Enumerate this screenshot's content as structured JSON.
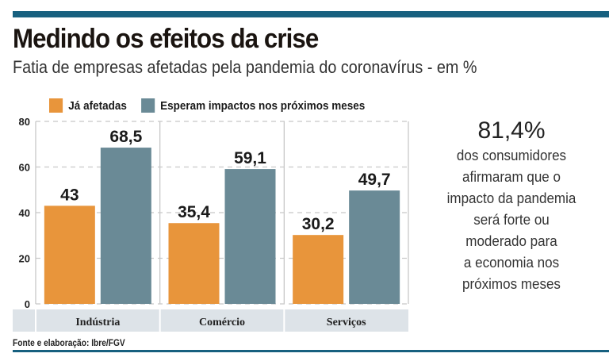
{
  "header": {
    "title": "Medindo os efeitos da crise",
    "subtitle": "Fatia de empresas afetadas pela pandemia do coronavírus - em %"
  },
  "colors": {
    "accent_bar": "#17607f",
    "series_affected": "#e8953b",
    "series_expected": "#6a8a96",
    "category_band": "#dde3e8"
  },
  "chart_data": {
    "type": "bar",
    "title": "Medindo os efeitos da crise",
    "subtitle": "Fatia de empresas afetadas pela pandemia do coronavírus - em %",
    "xlabel": "",
    "ylabel": "",
    "categories": [
      "Indústria",
      "Comércio",
      "Serviços"
    ],
    "series": [
      {
        "name": "Já afetadas",
        "values": [
          43,
          35.4,
          30.2
        ],
        "labels": [
          "43",
          "35,4",
          "30,2"
        ],
        "color": "#e8953b"
      },
      {
        "name": "Esperam impactos nos próximos meses",
        "values": [
          68.5,
          59.1,
          49.7
        ],
        "labels": [
          "68,5",
          "59,1",
          "49,7"
        ],
        "color": "#6a8a96"
      }
    ],
    "ylim": [
      0,
      80
    ],
    "yticks": [
      0,
      20,
      40,
      60,
      80
    ],
    "ytick_labels": [
      "0",
      "20",
      "40",
      "60",
      "80"
    ],
    "grid": true,
    "legend_position": "top"
  },
  "callout": {
    "value": "81,4%",
    "lines": [
      "dos consumidores",
      "afirmaram que o",
      "impacto da pandemia",
      "será forte ou",
      "moderado para",
      "a economia nos",
      "próximos meses"
    ]
  },
  "footer": {
    "source": "Fonte e elaboração: Ibre/FGV"
  }
}
